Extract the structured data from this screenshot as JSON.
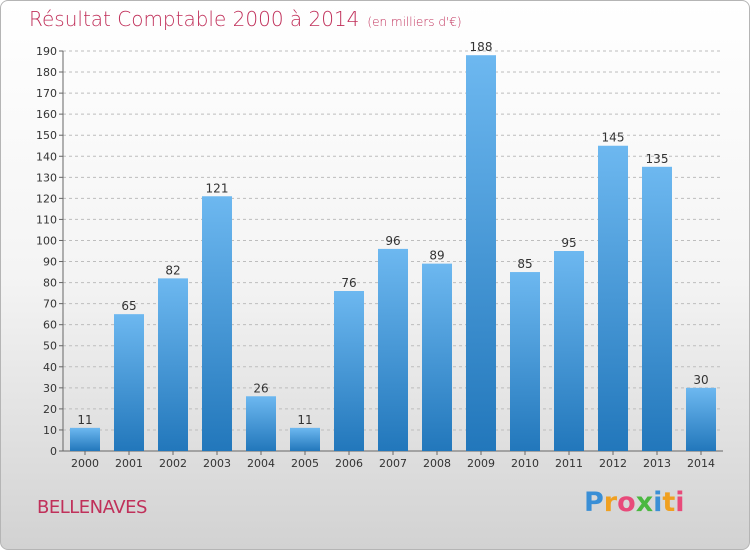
{
  "header": {
    "title": "Résultat Comptable 2000 à 2014",
    "subtitle": "(en milliers d'€)"
  },
  "footer": {
    "commune": "BELLENAVES"
  },
  "logo": {
    "letters": [
      "P",
      "r",
      "o",
      "x",
      "i",
      "t",
      "i"
    ],
    "colors": [
      "#3a8fd6",
      "#f0a020",
      "#e84a7a",
      "#4ab840",
      "#3a8fd6",
      "#f0a020",
      "#e84a7a"
    ]
  },
  "colors": {
    "title": "#c0305a",
    "bar_light": "#6db8f0",
    "bar_dark": "#2277bb"
  },
  "chart_data": {
    "type": "bar",
    "title": "Résultat Comptable 2000 à 2014",
    "categories": [
      "2000",
      "2001",
      "2002",
      "2003",
      "2004",
      "2005",
      "2006",
      "2007",
      "2008",
      "2009",
      "2010",
      "2011",
      "2012",
      "2013",
      "2014"
    ],
    "values": [
      11,
      65,
      82,
      121,
      26,
      11,
      76,
      96,
      89,
      188,
      85,
      95,
      145,
      135,
      30
    ],
    "ylim": [
      0,
      190
    ],
    "yticks": [
      0,
      10,
      20,
      30,
      40,
      50,
      60,
      70,
      80,
      90,
      100,
      110,
      120,
      130,
      140,
      150,
      160,
      170,
      180,
      190
    ],
    "grid": true,
    "xlabel": "",
    "ylabel": ""
  }
}
